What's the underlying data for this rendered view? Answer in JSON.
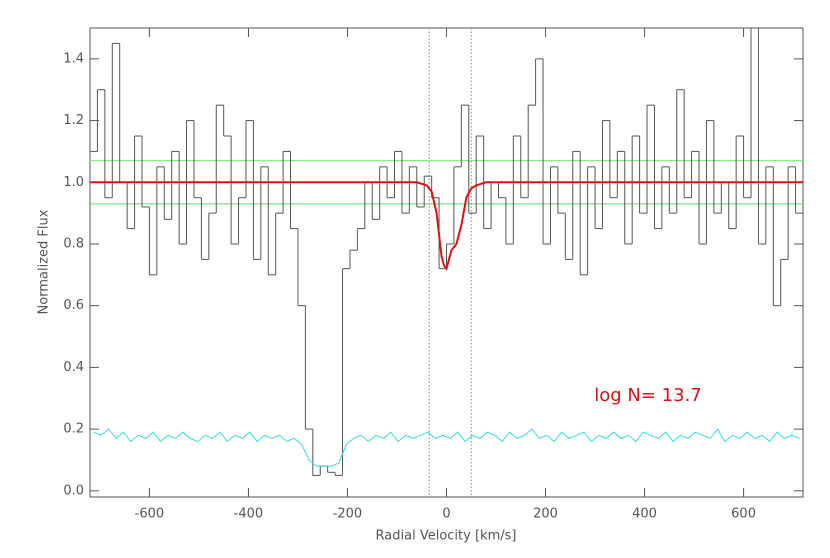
{
  "chart_data": {
    "type": "line",
    "xlabel": "Radial Velocity [km/s]",
    "ylabel": "Normalized Flux",
    "xlim": [
      -720,
      720
    ],
    "ylim": [
      -0.02,
      1.5
    ],
    "xticks": [
      -600,
      -400,
      -200,
      0,
      200,
      400,
      600
    ],
    "yticks": [
      {
        "value": 0,
        "label": "0.0"
      },
      {
        "value": 0.2,
        "label": "0.2"
      },
      {
        "value": 0.4,
        "label": "0.4"
      },
      {
        "value": 0.6,
        "label": "0.6"
      },
      {
        "value": 0.8,
        "label": "0.8"
      },
      {
        "value": 1.0,
        "label": "1.0"
      },
      {
        "value": 1.2,
        "label": "1.2"
      },
      {
        "value": 1.4,
        "label": "1.4"
      }
    ],
    "series": [
      {
        "style": "step",
        "color": "#555555",
        "x": [
          -712.5,
          -697.5,
          -682.5,
          -667.5,
          -652.5,
          -637.5,
          -622.5,
          -607.5,
          -592.5,
          -577.5,
          -562.5,
          -547.5,
          -532.5,
          -517.5,
          -502.5,
          -487.5,
          -472.5,
          -457.5,
          -442.5,
          -427.5,
          -412.5,
          -397.5,
          -382.5,
          -367.5,
          -352.5,
          -337.5,
          -322.5,
          -307.5,
          -292.5,
          -277.5,
          -262.5,
          -247.5,
          -232.5,
          -217.5,
          -202.5,
          -187.5,
          -172.5,
          -157.5,
          -142.5,
          -127.5,
          -112.5,
          -97.5,
          -82.5,
          -67.5,
          -52.5,
          -37.5,
          -22.5,
          -7.5,
          7.5,
          22.5,
          37.5,
          52.5,
          67.5,
          82.5,
          97.5,
          112.5,
          127.5,
          142.5,
          157.5,
          172.5,
          187.5,
          202.5,
          217.5,
          232.5,
          247.5,
          262.5,
          277.5,
          292.5,
          307.5,
          322.5,
          337.5,
          352.5,
          367.5,
          382.5,
          397.5,
          412.5,
          427.5,
          442.5,
          457.5,
          472.5,
          487.5,
          502.5,
          517.5,
          532.5,
          547.5,
          562.5,
          577.5,
          592.5,
          607.5,
          622.5,
          637.5,
          652.5,
          667.5,
          682.5,
          697.5,
          712.5
        ],
        "values": [
          1.1,
          1.3,
          0.95,
          1.45,
          1.0,
          0.85,
          1.15,
          0.92,
          0.7,
          1.05,
          0.88,
          1.1,
          0.8,
          1.2,
          0.95,
          0.75,
          0.9,
          1.25,
          1.15,
          0.8,
          0.95,
          1.2,
          0.75,
          1.05,
          0.7,
          0.9,
          1.1,
          0.85,
          0.6,
          0.2,
          0.05,
          0.08,
          0.06,
          0.05,
          0.72,
          0.78,
          0.85,
          1.0,
          0.88,
          1.05,
          0.95,
          1.1,
          0.9,
          1.05,
          0.92,
          1.02,
          0.95,
          0.72,
          0.8,
          1.05,
          1.25,
          0.9,
          1.15,
          0.85,
          1.0,
          0.95,
          0.8,
          1.15,
          0.95,
          1.25,
          1.4,
          0.8,
          1.05,
          0.9,
          0.75,
          1.1,
          0.7,
          1.05,
          0.85,
          1.2,
          0.95,
          1.1,
          0.8,
          1.15,
          0.9,
          1.25,
          0.85,
          1.05,
          0.9,
          1.3,
          0.95,
          1.1,
          0.8,
          1.2,
          0.9,
          1.0,
          0.85,
          1.15,
          0.95,
          1.5,
          0.8,
          1.05,
          0.6,
          0.75,
          1.05,
          0.9
        ]
      },
      {
        "style": "line",
        "color": "#33dddd",
        "x": [
          -712.5,
          -697.5,
          -682.5,
          -667.5,
          -652.5,
          -637.5,
          -622.5,
          -607.5,
          -592.5,
          -577.5,
          -562.5,
          -547.5,
          -532.5,
          -517.5,
          -502.5,
          -487.5,
          -472.5,
          -457.5,
          -442.5,
          -427.5,
          -412.5,
          -397.5,
          -382.5,
          -367.5,
          -352.5,
          -337.5,
          -322.5,
          -307.5,
          -292.5,
          -277.5,
          -262.5,
          -247.5,
          -232.5,
          -217.5,
          -202.5,
          -187.5,
          -172.5,
          -157.5,
          -142.5,
          -127.5,
          -112.5,
          -97.5,
          -82.5,
          -67.5,
          -52.5,
          -37.5,
          -22.5,
          -7.5,
          7.5,
          22.5,
          37.5,
          52.5,
          67.5,
          82.5,
          97.5,
          112.5,
          127.5,
          142.5,
          157.5,
          172.5,
          187.5,
          202.5,
          217.5,
          232.5,
          247.5,
          262.5,
          277.5,
          292.5,
          307.5,
          322.5,
          337.5,
          352.5,
          367.5,
          382.5,
          397.5,
          412.5,
          427.5,
          442.5,
          457.5,
          472.5,
          487.5,
          502.5,
          517.5,
          532.5,
          547.5,
          562.5,
          577.5,
          592.5,
          607.5,
          622.5,
          637.5,
          652.5,
          667.5,
          682.5,
          697.5,
          712.5
        ],
        "values": [
          0.19,
          0.18,
          0.2,
          0.17,
          0.19,
          0.16,
          0.18,
          0.17,
          0.19,
          0.16,
          0.18,
          0.17,
          0.19,
          0.17,
          0.16,
          0.18,
          0.17,
          0.19,
          0.16,
          0.18,
          0.17,
          0.19,
          0.16,
          0.18,
          0.17,
          0.18,
          0.16,
          0.17,
          0.15,
          0.1,
          0.08,
          0.08,
          0.08,
          0.09,
          0.15,
          0.17,
          0.18,
          0.16,
          0.18,
          0.17,
          0.19,
          0.16,
          0.18,
          0.17,
          0.18,
          0.19,
          0.17,
          0.18,
          0.17,
          0.19,
          0.16,
          0.18,
          0.17,
          0.19,
          0.18,
          0.16,
          0.19,
          0.17,
          0.18,
          0.2,
          0.17,
          0.18,
          0.16,
          0.19,
          0.17,
          0.18,
          0.19,
          0.16,
          0.18,
          0.17,
          0.19,
          0.17,
          0.18,
          0.16,
          0.19,
          0.18,
          0.17,
          0.19,
          0.16,
          0.18,
          0.17,
          0.19,
          0.18,
          0.17,
          0.2,
          0.16,
          0.18,
          0.17,
          0.19,
          0.17,
          0.18,
          0.16,
          0.19,
          0.17,
          0.18,
          0.17
        ]
      },
      {
        "style": "line",
        "color": "#e01010",
        "x": [
          -720,
          -60,
          -40,
          -30,
          -20,
          -10,
          -5,
          0,
          10,
          20,
          30,
          40,
          50,
          60,
          80,
          720
        ],
        "values": [
          1.0,
          1.0,
          0.99,
          0.97,
          0.9,
          0.76,
          0.73,
          0.72,
          0.78,
          0.8,
          0.86,
          0.95,
          0.98,
          0.99,
          1.0,
          1.0
        ]
      }
    ],
    "hlines": [
      1.07,
      0.93
    ],
    "hline_color": "#7de87d",
    "vlines": [
      -35,
      50
    ],
    "vline_color": "#888888",
    "annotation": {
      "text": "log N= 13.7",
      "color": "#e01010"
    }
  }
}
